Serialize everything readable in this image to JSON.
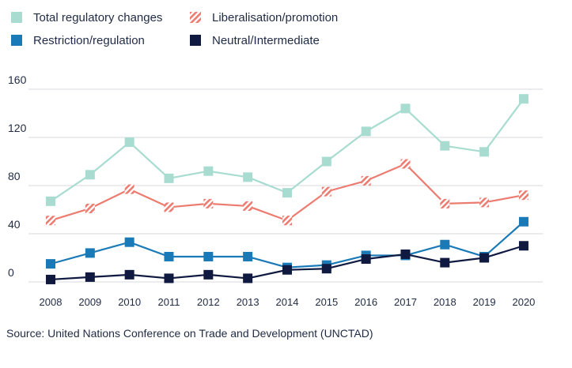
{
  "chart_data": {
    "type": "line",
    "x": [
      "2008",
      "2009",
      "2010",
      "2011",
      "2012",
      "2013",
      "2014",
      "2015",
      "2016",
      "2017",
      "2018",
      "2019",
      "2020"
    ],
    "yticks": [
      "160",
      "120",
      "80",
      "40",
      "0"
    ],
    "ylim": [
      0,
      160
    ],
    "grid": true,
    "legend_placement": "top",
    "series": [
      {
        "name": "Total regulatory changes",
        "color": "#a8dcd1",
        "marker": "square",
        "values": [
          67,
          89,
          116,
          86,
          92,
          87,
          74,
          100,
          125,
          144,
          113,
          108,
          152
        ]
      },
      {
        "name": "Liberalisation/promotion",
        "color": "#ec7b70",
        "marker": "hatched-square",
        "values": [
          51,
          61,
          77,
          62,
          65,
          63,
          51,
          75,
          84,
          98,
          65,
          66,
          72
        ]
      },
      {
        "name": "Restriction/regulation",
        "color": "#1a7ab8",
        "marker": "square",
        "values": [
          15,
          24,
          33,
          21,
          21,
          21,
          12,
          14,
          22,
          22,
          31,
          21,
          50
        ]
      },
      {
        "name": "Neutral/Intermediate",
        "color": "#101a40",
        "marker": "square",
        "values": [
          2,
          4,
          6,
          3,
          6,
          3,
          10,
          11,
          19,
          23,
          16,
          20,
          30
        ]
      }
    ]
  },
  "source": "Source: United Nations Conference on Trade and Development (UNCTAD)"
}
